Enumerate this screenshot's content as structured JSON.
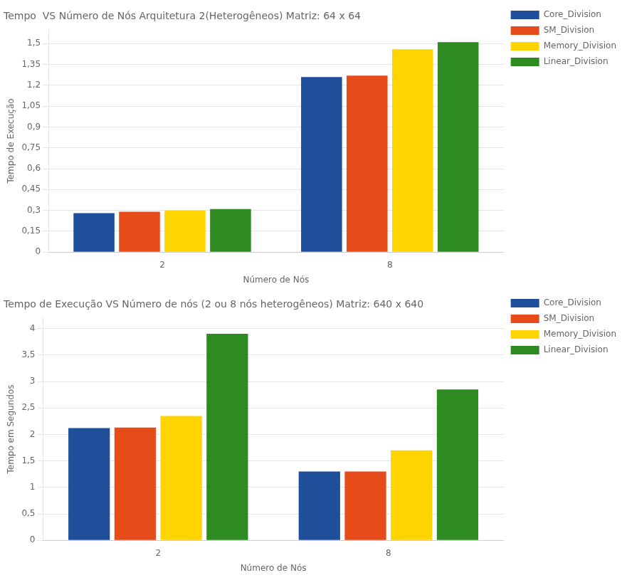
{
  "chart_data": [
    {
      "type": "bar",
      "title": "Tempo  VS Número de Nós Arquitetura 2(Heterogêneos) Matriz: 64 x 64",
      "x_label": "Número de Nós",
      "y_label": "Tempo de Execução",
      "categories": [
        "2",
        "8"
      ],
      "series": [
        {
          "name": "Core_Division",
          "color": "#1f4e9b",
          "values": [
            0.28,
            1.26
          ]
        },
        {
          "name": "SM_Division",
          "color": "#e84b1a",
          "values": [
            0.29,
            1.27
          ]
        },
        {
          "name": "Memory_Division",
          "color": "#ffd400",
          "values": [
            0.3,
            1.46
          ]
        },
        {
          "name": "Linear_Division",
          "color": "#2e8b22",
          "values": [
            0.31,
            1.51
          ]
        }
      ],
      "ylim": [
        0,
        1.6
      ],
      "yticks": [
        0,
        {
          "value": 0.15,
          "label": "0,15"
        },
        {
          "value": 0.3,
          "label": "0,3"
        },
        {
          "value": 0.45,
          "label": "0,45"
        },
        {
          "value": 0.6,
          "label": "0,6"
        },
        {
          "value": 0.75,
          "label": "0,75"
        },
        {
          "value": 0.9,
          "label": "0,9"
        },
        {
          "value": 1.05,
          "label": "1,05"
        },
        {
          "value": 1.2,
          "label": "1,2"
        },
        {
          "value": 1.35,
          "label": "1,35"
        },
        {
          "value": 1.5,
          "label": "1,5"
        }
      ],
      "grid": true,
      "legend": "right"
    },
    {
      "type": "bar",
      "title": "Tempo de Execução VS Número de nós (2 ou 8 nós heterogêneos) Matriz: 640 x 640",
      "x_label": "Número de Nós",
      "y_label": "Tempo em Segundos",
      "categories": [
        "2",
        "8"
      ],
      "series": [
        {
          "name": "Core_Division",
          "color": "#1f4e9b",
          "values": [
            2.12,
            1.3
          ]
        },
        {
          "name": "SM_Division",
          "color": "#e84b1a",
          "values": [
            2.13,
            1.3
          ]
        },
        {
          "name": "Memory_Division",
          "color": "#ffd400",
          "values": [
            2.35,
            1.7
          ]
        },
        {
          "name": "Linear_Division",
          "color": "#2e8b22",
          "values": [
            3.9,
            2.85
          ]
        }
      ],
      "ylim": [
        0,
        4.2
      ],
      "yticks": [
        0,
        {
          "value": 0.5,
          "label": "0,5"
        },
        1,
        {
          "value": 1.5,
          "label": "1,5"
        },
        2,
        {
          "value": 2.5,
          "label": "2,5"
        },
        3,
        {
          "value": 3.5,
          "label": "3,5"
        },
        4
      ],
      "grid": true,
      "legend": "right"
    }
  ]
}
